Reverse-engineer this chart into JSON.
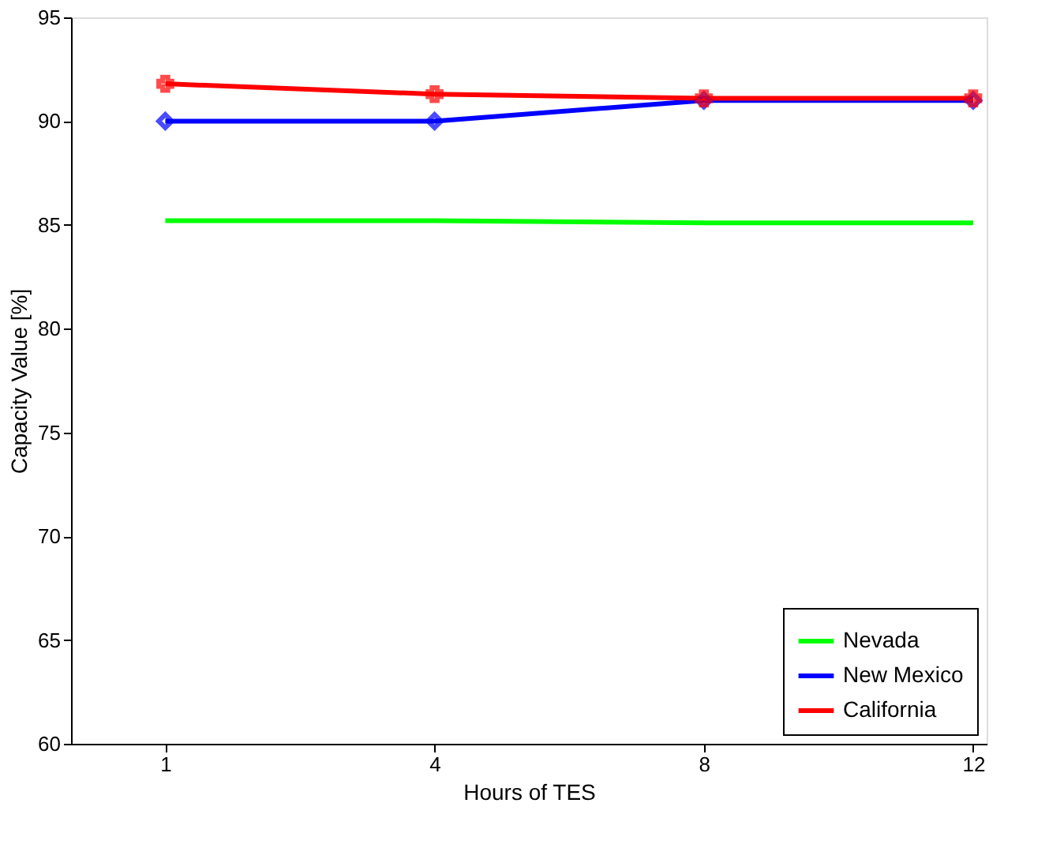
{
  "chart_data": {
    "type": "line",
    "xlabel": "Hours of TES",
    "ylabel": "Capacity Value [%]",
    "categories": [
      "1",
      "4",
      "8",
      "12"
    ],
    "ylim": [
      60,
      95
    ],
    "yticks": [
      60,
      65,
      70,
      75,
      80,
      85,
      90,
      95
    ],
    "grid": false,
    "legend": "bottom right",
    "line_style": "solid",
    "series": [
      {
        "name": "Nevada",
        "color": "#00ff00",
        "marker": "none",
        "values": [
          85.2,
          85.2,
          85.1,
          85.1
        ]
      },
      {
        "name": "New Mexico",
        "color": "#0000ff",
        "marker": "diamond",
        "values": [
          90.0,
          90.0,
          91.0,
          91.0
        ]
      },
      {
        "name": "California",
        "color": "#ff0000",
        "marker": "cross",
        "values": [
          91.8,
          91.3,
          91.1,
          91.1
        ]
      }
    ]
  }
}
